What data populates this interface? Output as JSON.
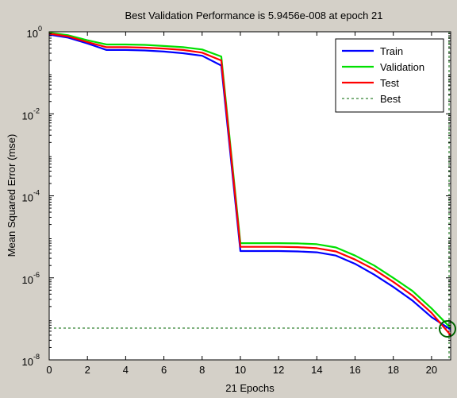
{
  "chart_data": {
    "type": "line",
    "title": "Best Validation Performance is 5.9456e-008 at epoch 21",
    "xlabel": "21 Epochs",
    "ylabel": "Mean Squared Error  (mse)",
    "xlim": [
      0,
      21
    ],
    "ylim": [
      1e-08,
      1
    ],
    "y_scale": "log",
    "x_ticks": [
      0,
      2,
      4,
      6,
      8,
      10,
      12,
      14,
      16,
      18,
      20
    ],
    "y_ticks": [
      {
        "value": 1,
        "mantissa": "10",
        "exp": "0"
      },
      {
        "value": 0.01,
        "mantissa": "10",
        "exp": "-2"
      },
      {
        "value": 0.0001,
        "mantissa": "10",
        "exp": "-4"
      },
      {
        "value": 1e-06,
        "mantissa": "10",
        "exp": "-6"
      },
      {
        "value": 1e-08,
        "mantissa": "10",
        "exp": "-8"
      }
    ],
    "grid": false,
    "legend_position": "top-right",
    "series": [
      {
        "name": "Train",
        "color": "#0000ff",
        "x": [
          0,
          1,
          2,
          3,
          4,
          5,
          6,
          7,
          8,
          9,
          10,
          11,
          12,
          13,
          14,
          15,
          16,
          17,
          18,
          19,
          20,
          21
        ],
        "y": [
          0.85,
          0.72,
          0.52,
          0.36,
          0.36,
          0.35,
          0.33,
          0.3,
          0.26,
          0.15,
          4.5e-06,
          4.5e-06,
          4.5e-06,
          4.4e-06,
          4.2e-06,
          3.5e-06,
          2.2e-06,
          1.2e-06,
          6e-07,
          2.8e-07,
          1.1e-07,
          5.5e-08
        ]
      },
      {
        "name": "Validation",
        "color": "#00e000",
        "x": [
          0,
          1,
          2,
          3,
          4,
          5,
          6,
          7,
          8,
          9,
          10,
          11,
          12,
          13,
          14,
          15,
          16,
          17,
          18,
          19,
          20,
          21
        ],
        "y": [
          0.95,
          0.82,
          0.62,
          0.49,
          0.49,
          0.48,
          0.45,
          0.42,
          0.37,
          0.25,
          7e-06,
          7e-06,
          7e-06,
          6.9e-06,
          6.6e-06,
          5.5e-06,
          3.5e-06,
          2e-06,
          1e-06,
          4.8e-07,
          1.8e-07,
          6e-08
        ]
      },
      {
        "name": "Test",
        "color": "#ff0000",
        "x": [
          0,
          1,
          2,
          3,
          4,
          5,
          6,
          7,
          8,
          9,
          10,
          11,
          12,
          13,
          14,
          15,
          16,
          17,
          18,
          19,
          20,
          21
        ],
        "y": [
          0.9,
          0.77,
          0.56,
          0.42,
          0.42,
          0.41,
          0.39,
          0.36,
          0.31,
          0.2,
          5.7e-06,
          5.7e-06,
          5.7e-06,
          5.6e-06,
          5.3e-06,
          4.4e-06,
          2.8e-06,
          1.6e-06,
          8e-07,
          3.7e-07,
          1.4e-07,
          4e-08
        ]
      }
    ],
    "best": {
      "name": "Best",
      "color": "#006400",
      "epoch": 21,
      "value": 5.9456e-08
    }
  }
}
